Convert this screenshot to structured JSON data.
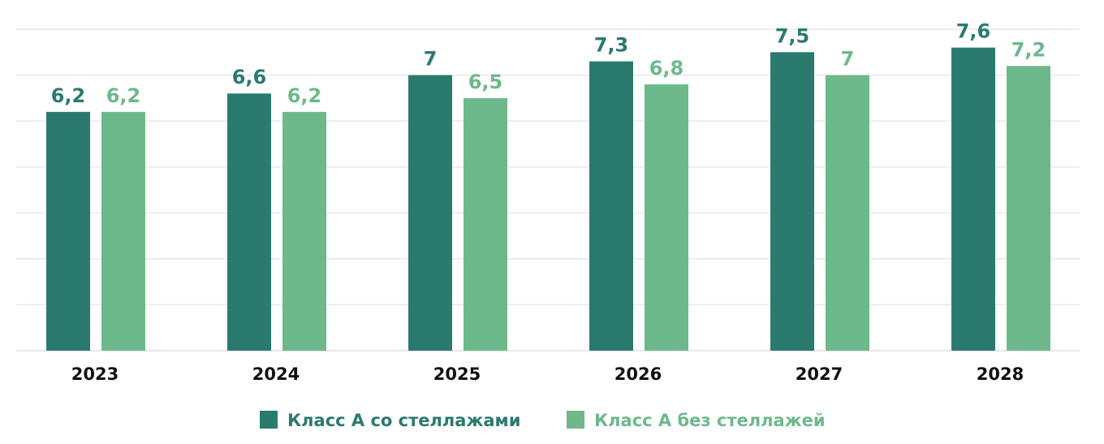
{
  "chart_data": {
    "type": "bar",
    "categories": [
      "2023",
      "2024",
      "2025",
      "2026",
      "2027",
      "2028"
    ],
    "series": [
      {
        "name": "Класс А со стеллажами",
        "values": [
          6.2,
          6.6,
          7,
          7.3,
          7.5,
          7.6
        ],
        "color": "#2b7a70",
        "labels": [
          "6,2",
          "6,6",
          "7",
          "7,3",
          "7,5",
          "7,6"
        ]
      },
      {
        "name": "Класс А без стеллажей",
        "values": [
          6.2,
          6.2,
          6.5,
          6.8,
          7,
          7.2
        ],
        "color": "#6db98b",
        "labels": [
          "6,2",
          "6,2",
          "6,5",
          "6,8",
          "7",
          "7,2"
        ]
      }
    ],
    "ylim": [
      1,
      8
    ],
    "grid": true,
    "legend": "bottom",
    "title": "",
    "xlabel": "",
    "ylabel": ""
  }
}
